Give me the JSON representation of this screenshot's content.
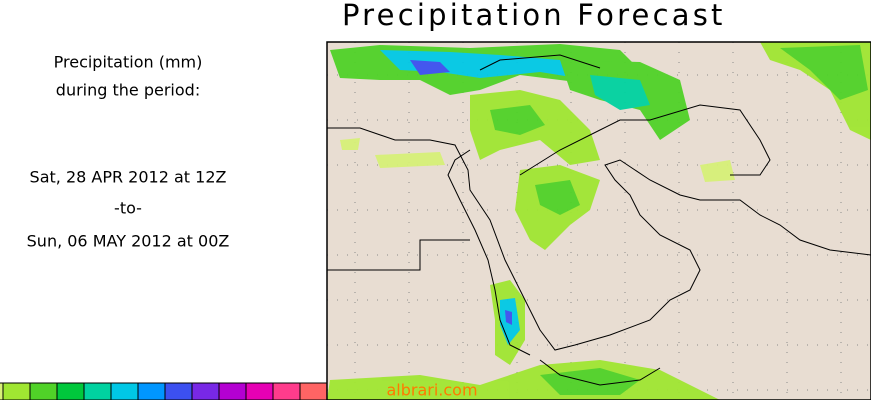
{
  "title": "Precipitation Forecast",
  "side_panel": {
    "line1": "Precipitation (mm)",
    "line2": "during the period:",
    "start": "Sat, 28 APR 2012 at 12Z",
    "separator": "-to-",
    "end": "Sun, 06 MAY 2012 at 00Z"
  },
  "legend": {
    "colors": [
      "#d7f078",
      "#a0e632",
      "#50d228",
      "#00c83c",
      "#00d2a0",
      "#00c8e6",
      "#0096ff",
      "#3c50f0",
      "#7828e6",
      "#b400d2",
      "#e600b4",
      "#ff3c8c",
      "#ff6464"
    ]
  },
  "watermark": "albrari.com"
}
